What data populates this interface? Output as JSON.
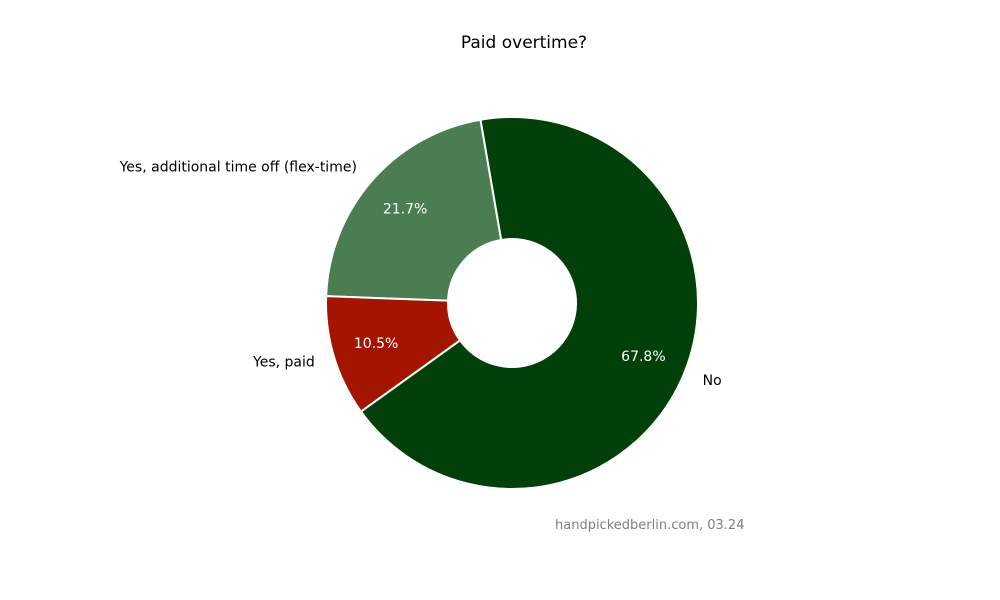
{
  "chart_data": {
    "type": "pie",
    "donut": true,
    "title": "Paid overtime?",
    "categories": [
      "No",
      "Yes, additional time off (flex-time)",
      "Yes, paid"
    ],
    "values": [
      67.8,
      21.7,
      10.5
    ],
    "value_labels": [
      "67.8%",
      "21.7%",
      "10.5%"
    ],
    "colors": [
      "#02400a",
      "#4a7d52",
      "#a31500"
    ],
    "source_note": "handpickedberlin.com, 03.24",
    "legend": "none"
  }
}
